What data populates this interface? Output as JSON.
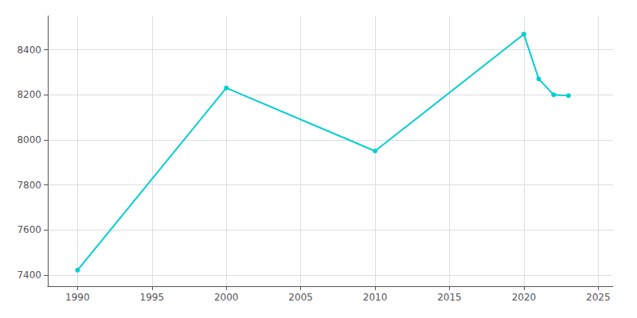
{
  "chart_data": {
    "type": "line",
    "x": [
      1990,
      2000,
      2010,
      2020,
      2021,
      2022,
      2023
    ],
    "values": [
      7421,
      8230,
      7950,
      8469,
      8270,
      8200,
      8196
    ],
    "color": "#00CED1",
    "marker": "circle",
    "xlim": [
      1988,
      2026
    ],
    "ylim": [
      7350,
      8550
    ],
    "xticks": [
      1990,
      1995,
      2000,
      2005,
      2010,
      2015,
      2020,
      2025
    ],
    "yticks": [
      7400,
      7600,
      7800,
      8000,
      8200,
      8400
    ],
    "grid": true
  }
}
